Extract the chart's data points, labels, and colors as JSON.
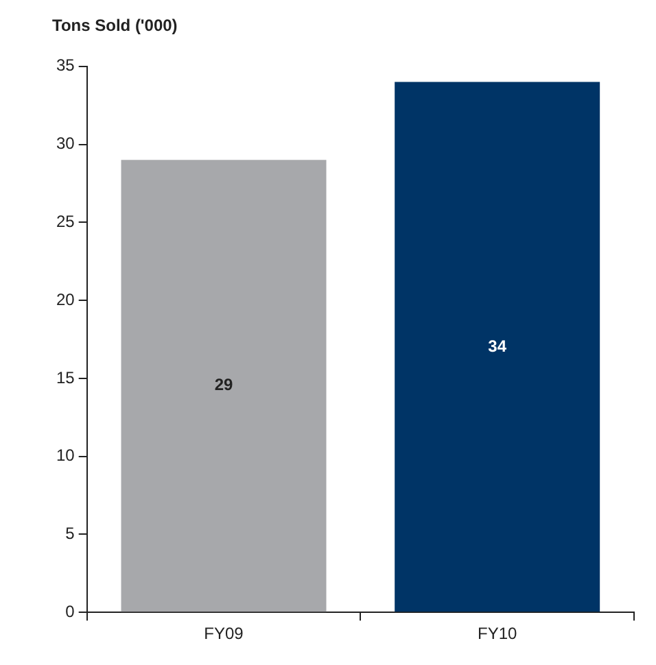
{
  "chart_data": {
    "type": "bar",
    "title": "Tons Sold ('000)",
    "categories": [
      "FY09",
      "FY10"
    ],
    "values": [
      29,
      34
    ],
    "colors": [
      "#a7a8ab",
      "#003466"
    ],
    "ylim": [
      0,
      35
    ],
    "yticks": [
      0,
      5,
      10,
      15,
      20,
      25,
      30,
      35
    ],
    "data_labels": true,
    "grid": false,
    "legend": false
  }
}
